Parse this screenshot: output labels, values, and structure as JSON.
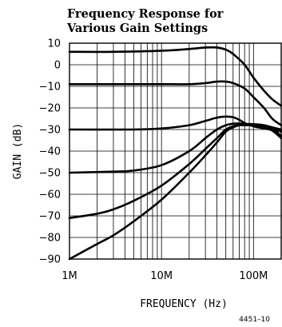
{
  "chart_data": {
    "type": "line",
    "title_lines": [
      "Frequency Response for",
      "Various Gain Settings"
    ],
    "xlabel": "FREQUENCY (Hz)",
    "ylabel": "GAIN (dB)",
    "xscale": "log",
    "xlim": [
      1000000,
      200000000
    ],
    "ylim": [
      -90,
      10
    ],
    "yticks": [
      10,
      0,
      -10,
      -20,
      -30,
      -40,
      -50,
      -60,
      -70,
      -80,
      -90
    ],
    "yticklabels": [
      "10",
      "0",
      "−10",
      "−20",
      "−30",
      "−40",
      "−50",
      "−60",
      "−70",
      "−80",
      "−90"
    ],
    "xticks": [
      1000000,
      10000000,
      100000000
    ],
    "xticklabels": [
      "1M",
      "10M",
      "100M"
    ],
    "grid": true,
    "figure_id": "4451–10",
    "series": [
      {
        "x": [
          1000000,
          3000000,
          10000000,
          20000000,
          30000000,
          40000000,
          50000000,
          60000000,
          80000000,
          100000000,
          130000000,
          160000000,
          200000000
        ],
        "y": [
          6,
          6,
          6.5,
          7.3,
          8,
          8,
          7,
          5,
          0,
          -6,
          -12,
          -16,
          -19
        ]
      },
      {
        "x": [
          1000000,
          5000000,
          10000000,
          20000000,
          30000000,
          40000000,
          50000000,
          60000000,
          80000000,
          100000000,
          130000000,
          160000000,
          200000000
        ],
        "y": [
          -9,
          -9,
          -9,
          -9,
          -8.5,
          -7.8,
          -7.8,
          -8.5,
          -11,
          -15,
          -20,
          -25,
          -28
        ]
      },
      {
        "x": [
          1000000,
          5000000,
          10000000,
          20000000,
          30000000,
          40000000,
          50000000,
          60000000,
          70000000,
          80000000,
          100000000,
          130000000,
          160000000,
          200000000
        ],
        "y": [
          -30,
          -30,
          -29.5,
          -28,
          -26,
          -24.5,
          -24,
          -24.3,
          -25.5,
          -27,
          -28.5,
          -29.5,
          -30.5,
          -34
        ]
      },
      {
        "x": [
          1000000,
          3000000,
          5000000,
          10000000,
          20000000,
          30000000,
          40000000,
          50000000,
          60000000,
          70000000,
          80000000,
          100000000,
          130000000,
          160000000,
          200000000
        ],
        "y": [
          -50,
          -49.5,
          -49,
          -46.5,
          -40,
          -34,
          -30,
          -28,
          -27.3,
          -27.2,
          -27.5,
          -28,
          -28.5,
          -29.5,
          -33
        ]
      },
      {
        "x": [
          1000000,
          2000000,
          3000000,
          5000000,
          10000000,
          20000000,
          30000000,
          40000000,
          50000000,
          60000000,
          70000000,
          80000000,
          100000000,
          130000000,
          160000000,
          200000000
        ],
        "y": [
          -71,
          -69,
          -67,
          -63,
          -56,
          -46,
          -39,
          -34,
          -30,
          -28.5,
          -28,
          -28,
          -28,
          -28.5,
          -29.5,
          -31
        ]
      },
      {
        "x": [
          1000000,
          2000000,
          3000000,
          5000000,
          10000000,
          20000000,
          30000000,
          40000000,
          50000000,
          60000000,
          70000000,
          80000000,
          100000000,
          130000000,
          160000000,
          200000000
        ],
        "y": [
          -90,
          -83,
          -79,
          -72.5,
          -62.5,
          -50,
          -42,
          -36,
          -31,
          -29,
          -28,
          -27.5,
          -27.5,
          -28,
          -29,
          -30
        ]
      }
    ]
  }
}
